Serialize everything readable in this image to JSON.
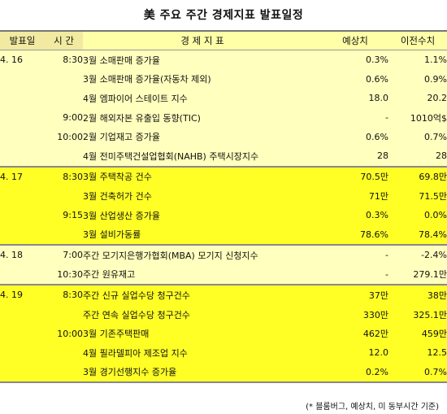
{
  "title": "美 주요 주간 경제지표 발표일정",
  "headers": {
    "date": "발표일",
    "time": "시 간",
    "indicator": "경 제 지 표",
    "expected": "예상치",
    "previous": "이전수치"
  },
  "groups": [
    {
      "date": "4. 16",
      "rows": [
        {
          "time": "8:30",
          "indicator": "3월 소매판매 증가율",
          "expected": "0.3%",
          "previous": "1.1%"
        },
        {
          "time": "",
          "indicator": "3월 소매판매 증가율(자동차 제외)",
          "expected": "0.6%",
          "previous": "0.9%"
        },
        {
          "time": "",
          "indicator": "4월 엠파이어 스테이트 지수",
          "expected": "18.0",
          "previous": "20.2"
        },
        {
          "time": "9:00",
          "indicator": "2월 해외자본 유출입 동향(TIC)",
          "expected": "-",
          "previous": "1010억$"
        },
        {
          "time": "10:00",
          "indicator": "2월 기업재고 증가율",
          "expected": "0.6%",
          "previous": "0.7%"
        },
        {
          "time": "",
          "indicator": "4월 전미주택건설업협회(NAHB) 주택시장지수",
          "expected": "28",
          "previous": "28"
        }
      ]
    },
    {
      "date": "4. 17",
      "rows": [
        {
          "time": "8:30",
          "indicator": "3월 주택착공 건수",
          "expected": "70.5만",
          "previous": "69.8만"
        },
        {
          "time": "",
          "indicator": "3월 건축허가 건수",
          "expected": "71만",
          "previous": "71.5만"
        },
        {
          "time": "9:15",
          "indicator": "3월 산업생산 증가율",
          "expected": "0.3%",
          "previous": "0.0%"
        },
        {
          "time": "",
          "indicator": "3월 설비가동률",
          "expected": "78.6%",
          "previous": "78.4%"
        }
      ]
    },
    {
      "date": "4. 18",
      "rows": [
        {
          "time": "7:00",
          "indicator": "주간 모기지은행가협회(MBA) 모기지 신청지수",
          "expected": "-",
          "previous": "-2.4%"
        },
        {
          "time": "10:30",
          "indicator": "주간 원유재고",
          "expected": "-",
          "previous": "279.1만"
        }
      ]
    },
    {
      "date": "4. 19",
      "rows": [
        {
          "time": "8:30",
          "indicator": "주간 신규 실업수당 청구건수",
          "expected": "37만",
          "previous": "38만"
        },
        {
          "time": "",
          "indicator": "주간 연속 실업수당 청구건수",
          "expected": "330만",
          "previous": "325.1만"
        },
        {
          "time": "10:00",
          "indicator": "3월 기존주택판매",
          "expected": "462만",
          "previous": "459만"
        },
        {
          "time": "",
          "indicator": "4월 필라델피아 제조업 지수",
          "expected": "12.0",
          "previous": "12.5"
        },
        {
          "time": "",
          "indicator": "3월 경기선행지수 증가율",
          "expected": "0.2%",
          "previous": "0.7%"
        }
      ]
    }
  ],
  "footnote": "(* 블룸버그, 예상치, 미 동부시간 기준)",
  "colors": {
    "header": "#ffffa8",
    "light_band": "#ffffbe",
    "bright_band": "#ffff26"
  }
}
